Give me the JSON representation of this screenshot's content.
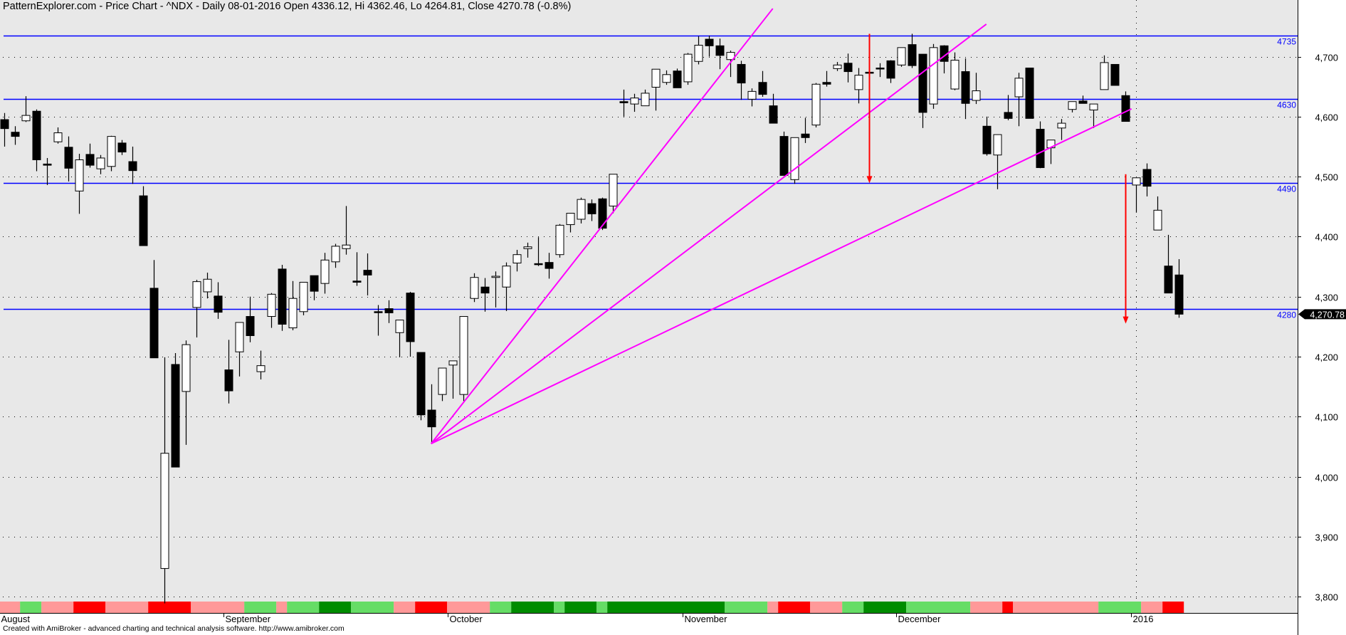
{
  "header": {
    "title": "PatternExplorer.com - Price Chart - ^NDX - Daily 08-01-2016 Open 4336.12, Hi 4362.46, Lo 4264.81, Close 4270.78 (-0.8%)"
  },
  "footer": {
    "text": "Created with AmiBroker - advanced charting and technical analysis software. http://www.amibroker.com"
  },
  "chart_data": {
    "type": "candlestick",
    "symbol": "^NDX",
    "ylim": [
      3770,
      4790
    ],
    "yticks": [
      3800,
      3900,
      4000,
      4100,
      4200,
      4300,
      4400,
      4500,
      4600,
      4700
    ],
    "ytick_labels": [
      "3,800",
      "3,900",
      "4,000",
      "4,100",
      "4,200",
      "4,300",
      "4,400",
      "4,500",
      "4,600",
      "4,700"
    ],
    "grid": "horizontal dotted",
    "last_price_label": "4,270.78",
    "last_price": 4270.78,
    "month_labels": [
      {
        "index": 0,
        "label": "August"
      },
      {
        "index": 21,
        "label": "September"
      },
      {
        "index": 42,
        "label": "October"
      },
      {
        "index": 64,
        "label": "November"
      },
      {
        "index": 84,
        "label": "December"
      },
      {
        "index": 106,
        "label": "2016"
      }
    ],
    "year_separator_index": 106,
    "candle_fields": [
      "open",
      "high",
      "low",
      "close"
    ],
    "candles": [
      [
        4595,
        4606,
        4550,
        4580
      ],
      [
        4574,
        4584,
        4553,
        4567
      ],
      [
        4593,
        4634,
        4591,
        4602
      ],
      [
        4609,
        4612,
        4509,
        4528
      ],
      [
        4521,
        4531,
        4486,
        4519
      ],
      [
        4558,
        4582,
        4555,
        4573
      ],
      [
        4549,
        4567,
        4492,
        4514
      ],
      [
        4476,
        4538,
        4438,
        4528
      ],
      [
        4537,
        4555,
        4515,
        4519
      ],
      [
        4513,
        4536,
        4504,
        4531
      ],
      [
        4517,
        4568,
        4509,
        4567
      ],
      [
        4556,
        4561,
        4536,
        4541
      ],
      [
        4525,
        4550,
        4488,
        4510
      ],
      [
        4468,
        4484,
        4385,
        4385
      ],
      [
        4314,
        4361,
        4198,
        4198
      ],
      [
        3847,
        4199,
        3789,
        4039
      ],
      [
        4187,
        4206,
        4016,
        4016
      ],
      [
        4142,
        4227,
        4053,
        4220
      ],
      [
        4282,
        4328,
        4232,
        4325
      ],
      [
        4308,
        4340,
        4297,
        4329
      ],
      [
        4301,
        4324,
        4263,
        4274
      ],
      [
        4178,
        4228,
        4122,
        4143
      ],
      [
        4208,
        4257,
        4167,
        4257
      ],
      [
        4267,
        4300,
        4224,
        4235
      ],
      [
        4175,
        4210,
        4162,
        4185
      ],
      [
        4267,
        4306,
        4248,
        4304
      ],
      [
        4346,
        4353,
        4243,
        4254
      ],
      [
        4248,
        4326,
        4244,
        4297
      ],
      [
        4275,
        4324,
        4269,
        4324
      ],
      [
        4335,
        4335,
        4294,
        4309
      ],
      [
        4322,
        4373,
        4305,
        4361
      ],
      [
        4358,
        4388,
        4348,
        4384
      ],
      [
        4380,
        4451,
        4370,
        4386
      ],
      [
        4326,
        4374,
        4318,
        4324
      ],
      [
        4344,
        4372,
        4302,
        4336
      ],
      [
        4275,
        4286,
        4235,
        4274
      ],
      [
        4280,
        4294,
        4256,
        4273
      ],
      [
        4240,
        4261,
        4199,
        4261
      ],
      [
        4306,
        4308,
        4200,
        4225
      ],
      [
        4207,
        4207,
        4094,
        4103
      ],
      [
        4111,
        4154,
        4055,
        4083
      ],
      [
        4137,
        4181,
        4126,
        4181
      ],
      [
        4186,
        4193,
        4130,
        4193
      ],
      [
        4137,
        4267,
        4126,
        4267
      ],
      [
        4297,
        4339,
        4291,
        4332
      ],
      [
        4316,
        4331,
        4275,
        4306
      ],
      [
        4332,
        4342,
        4282,
        4334
      ],
      [
        4316,
        4357,
        4276,
        4351
      ],
      [
        4356,
        4378,
        4342,
        4370
      ],
      [
        4380,
        4390,
        4365,
        4383
      ],
      [
        4355,
        4399,
        4351,
        4354
      ],
      [
        4357,
        4373,
        4330,
        4347
      ],
      [
        4370,
        4421,
        4365,
        4419
      ],
      [
        4420,
        4439,
        4407,
        4439
      ],
      [
        4429,
        4465,
        4422,
        4462
      ],
      [
        4455,
        4462,
        4426,
        4438
      ],
      [
        4463,
        4465,
        4411,
        4414
      ],
      [
        4451,
        4504,
        4439,
        4504
      ],
      [
        4625,
        4645,
        4600,
        4623
      ],
      [
        4621,
        4638,
        4608,
        4631
      ],
      [
        4618,
        4645,
        4618,
        4639
      ],
      [
        4649,
        4679,
        4610,
        4679
      ],
      [
        4657,
        4677,
        4653,
        4670
      ],
      [
        4676,
        4680,
        4648,
        4648
      ],
      [
        4658,
        4706,
        4653,
        4704
      ],
      [
        4692,
        4734,
        4687,
        4719
      ],
      [
        4729,
        4735,
        4700,
        4718
      ],
      [
        4718,
        4730,
        4679,
        4702
      ],
      [
        4695,
        4710,
        4666,
        4707
      ],
      [
        4687,
        4693,
        4628,
        4656
      ],
      [
        4629,
        4647,
        4617,
        4642
      ],
      [
        4657,
        4676,
        4633,
        4637
      ],
      [
        4618,
        4638,
        4589,
        4589
      ],
      [
        4567,
        4575,
        4502,
        4502
      ],
      [
        4495,
        4565,
        4488,
        4565
      ],
      [
        4571,
        4598,
        4556,
        4565
      ],
      [
        4586,
        4656,
        4582,
        4654
      ],
      [
        4657,
        4676,
        4650,
        4654
      ],
      [
        4680,
        4691,
        4676,
        4686
      ],
      [
        4689,
        4705,
        4657,
        4675
      ],
      [
        4645,
        4681,
        4622,
        4669
      ],
      [
        4674,
        4680,
        4665,
        4673
      ],
      [
        4681,
        4689,
        4666,
        4680
      ],
      [
        4693,
        4694,
        4656,
        4664
      ],
      [
        4686,
        4715,
        4683,
        4715
      ],
      [
        4720,
        4738,
        4681,
        4685
      ],
      [
        4704,
        4704,
        4581,
        4607
      ],
      [
        4621,
        4721,
        4613,
        4715
      ],
      [
        4718,
        4719,
        4672,
        4692
      ],
      [
        4646,
        4707,
        4644,
        4694
      ],
      [
        4675,
        4697,
        4596,
        4622
      ],
      [
        4627,
        4673,
        4621,
        4643
      ],
      [
        4584,
        4600,
        4535,
        4538
      ],
      [
        4536,
        4570,
        4479,
        4570
      ],
      [
        4607,
        4636,
        4594,
        4597
      ],
      [
        4633,
        4673,
        4584,
        4664
      ],
      [
        4681,
        4681,
        4597,
        4597
      ],
      [
        4579,
        4592,
        4514,
        4515
      ],
      [
        4548,
        4561,
        4521,
        4561
      ],
      [
        4581,
        4596,
        4561,
        4589
      ],
      [
        4612,
        4625,
        4607,
        4625
      ],
      [
        4626,
        4635,
        4622,
        4622
      ],
      [
        4611,
        4621,
        4581,
        4621
      ],
      [
        4645,
        4702,
        4645,
        4690
      ],
      [
        4687,
        4687,
        4652,
        4652
      ],
      [
        4635,
        4642,
        4592,
        4592
      ],
      [
        4486,
        4498,
        4440,
        4498
      ],
      [
        4512,
        4522,
        4467,
        4484
      ],
      [
        4411,
        4467,
        4411,
        4444
      ],
      [
        4351,
        4403,
        4306,
        4306
      ],
      [
        4336.12,
        4362.46,
        4264.81,
        4270.78
      ]
    ],
    "horizontal_levels": [
      {
        "value": 4735,
        "label": "4735"
      },
      {
        "value": 4630,
        "label": "4630"
      },
      {
        "value": 4490,
        "label": "4490"
      },
      {
        "value": 4280,
        "label": "4280"
      }
    ],
    "fan_lines": [
      {
        "from": [
          40,
          4055
        ],
        "to": [
          72,
          4780
        ]
      },
      {
        "from": [
          40,
          4055
        ],
        "to": [
          92,
          4754
        ]
      },
      {
        "from": [
          40,
          4055
        ],
        "to": [
          105.6,
          4613
        ]
      }
    ],
    "target_arrows": [
      {
        "index": 81,
        "from": 4738,
        "to": 4489
      },
      {
        "index": 105,
        "from": 4504,
        "to": 4255
      }
    ],
    "color_band": [
      {
        "start": 0,
        "end": 2,
        "color": "pink"
      },
      {
        "start": 2,
        "end": 4,
        "color": "lightgreen"
      },
      {
        "start": 4,
        "end": 7,
        "color": "pink"
      },
      {
        "start": 7,
        "end": 10,
        "color": "red"
      },
      {
        "start": 10,
        "end": 14,
        "color": "pink"
      },
      {
        "start": 14,
        "end": 18,
        "color": "red"
      },
      {
        "start": 18,
        "end": 23,
        "color": "pink"
      },
      {
        "start": 23,
        "end": 26,
        "color": "lightgreen"
      },
      {
        "start": 26,
        "end": 27,
        "color": "pink"
      },
      {
        "start": 27,
        "end": 30,
        "color": "lightgreen"
      },
      {
        "start": 30,
        "end": 33,
        "color": "darkgreen"
      },
      {
        "start": 33,
        "end": 37,
        "color": "lightgreen"
      },
      {
        "start": 37,
        "end": 39,
        "color": "pink"
      },
      {
        "start": 39,
        "end": 42,
        "color": "red"
      },
      {
        "start": 42,
        "end": 46,
        "color": "pink"
      },
      {
        "start": 46,
        "end": 48,
        "color": "lightgreen"
      },
      {
        "start": 48,
        "end": 52,
        "color": "darkgreen"
      },
      {
        "start": 52,
        "end": 53,
        "color": "lightgreen"
      },
      {
        "start": 53,
        "end": 56,
        "color": "darkgreen"
      },
      {
        "start": 56,
        "end": 57,
        "color": "lightgreen"
      },
      {
        "start": 57,
        "end": 68,
        "color": "darkgreen"
      },
      {
        "start": 68,
        "end": 72,
        "color": "lightgreen"
      },
      {
        "start": 72,
        "end": 73,
        "color": "pink"
      },
      {
        "start": 73,
        "end": 76,
        "color": "red"
      },
      {
        "start": 76,
        "end": 79,
        "color": "pink"
      },
      {
        "start": 79,
        "end": 81,
        "color": "lightgreen"
      },
      {
        "start": 81,
        "end": 85,
        "color": "darkgreen"
      },
      {
        "start": 85,
        "end": 91,
        "color": "lightgreen"
      },
      {
        "start": 91,
        "end": 94,
        "color": "pink"
      },
      {
        "start": 94,
        "end": 95,
        "color": "red"
      },
      {
        "start": 95,
        "end": 103,
        "color": "pink"
      },
      {
        "start": 103,
        "end": 107,
        "color": "lightgreen"
      },
      {
        "start": 107,
        "end": 109,
        "color": "pink"
      },
      {
        "start": 109,
        "end": 111,
        "color": "red"
      }
    ],
    "colors": {
      "plot_background": "#e8e8e8",
      "up_candle": "#ffffff",
      "down_candle": "#000000",
      "level_line": "#0000ff",
      "fan_line": "#ff00ff",
      "arrow": "#ff0000",
      "pink": "#ff9999",
      "red": "#ff0000",
      "lightgreen": "#66dd66",
      "darkgreen": "#008c00"
    }
  }
}
